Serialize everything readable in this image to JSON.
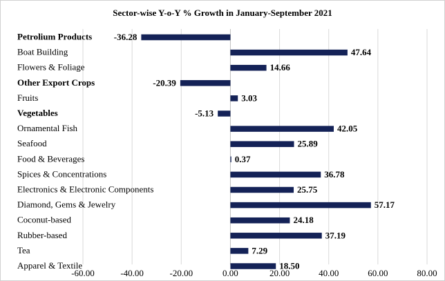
{
  "chart_data": {
    "type": "bar",
    "orientation": "horizontal",
    "title": "Sector-wise Y-o-Y % Growth  in January-September 2021",
    "xlabel": "",
    "ylabel": "",
    "xlim": [
      -60,
      80
    ],
    "x_ticks": [
      -60,
      -40,
      -20,
      0,
      20,
      40,
      60,
      80
    ],
    "x_tick_labels": [
      "-60.00",
      "-40.00",
      "-20.00",
      "0.00",
      "20.00",
      "40.00",
      "60.00",
      "80.00"
    ],
    "grid": true,
    "bar_color": "#142257",
    "categories": [
      "Petrolium Products",
      "Boat Building",
      "Flowers & Foliage",
      "Other Export Crops",
      "Fruits",
      "Vegetables",
      "Ornamental Fish",
      "Seafood",
      "Food & Beverages",
      "Spices & Concentrations",
      "Electronics & Electronic Components",
      "Diamond, Gems &  Jewelry",
      "Coconut-based",
      "Rubber-based",
      "Tea",
      "Apparel & Textile"
    ],
    "values": [
      -36.28,
      47.64,
      14.66,
      -20.39,
      3.03,
      -5.13,
      42.05,
      25.89,
      0.37,
      36.78,
      25.75,
      57.17,
      24.18,
      37.19,
      7.29,
      18.5
    ],
    "value_labels": [
      "-36.28",
      "47.64",
      "14.66",
      "-20.39",
      "3.03",
      "-5.13",
      "42.05",
      "25.89",
      "0.37",
      "36.78",
      "25.75",
      "57.17",
      "24.18",
      "37.19",
      "7.29",
      "18.50"
    ],
    "bold_categories": [
      "Petrolium Products",
      "Other Export Crops",
      "Vegetables"
    ]
  }
}
